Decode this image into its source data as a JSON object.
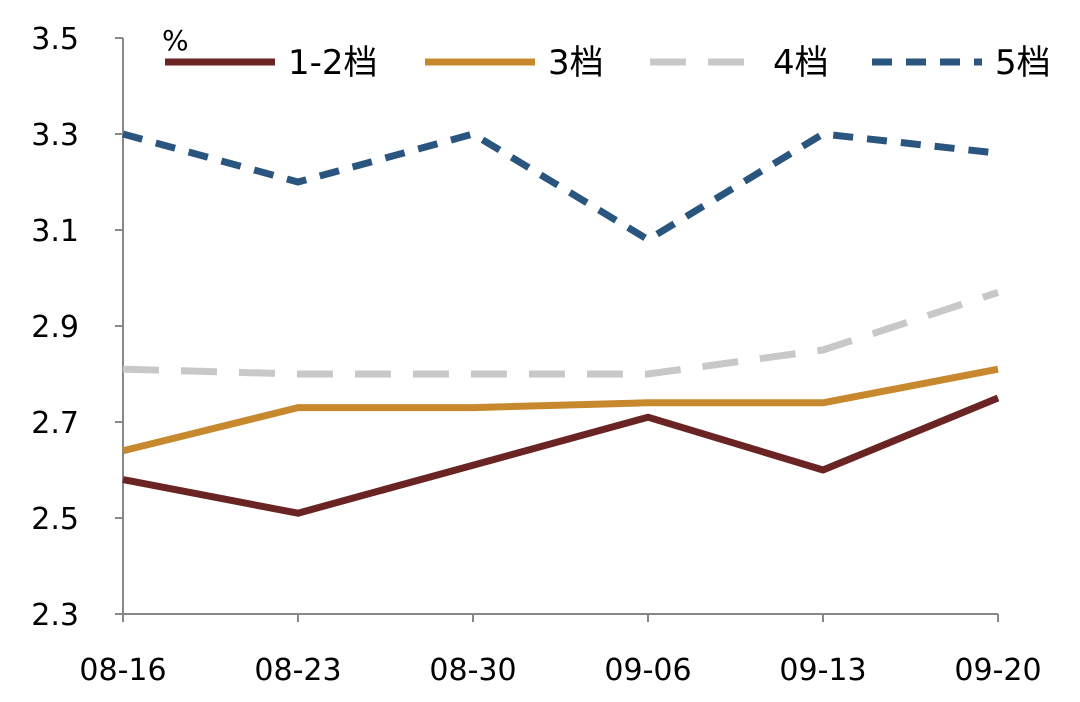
{
  "chart_data": {
    "type": "line",
    "title": "",
    "xlabel": "",
    "ylabel": "%",
    "categories": [
      "08-16",
      "08-23",
      "08-30",
      "09-06",
      "09-13",
      "09-20"
    ],
    "ylim": [
      2.3,
      3.5
    ],
    "yticks": [
      "2.3",
      "2.5",
      "2.7",
      "2.9",
      "3.1",
      "3.3",
      "3.5"
    ],
    "grid": false,
    "legend_position": "top",
    "series": [
      {
        "name": "1-2档",
        "values": [
          2.58,
          2.51,
          2.61,
          2.71,
          2.6,
          2.75
        ],
        "color": "#6b2424",
        "dash": "solid"
      },
      {
        "name": "3档",
        "values": [
          2.64,
          2.73,
          2.73,
          2.74,
          2.74,
          2.81
        ],
        "color": "#c8892e",
        "dash": "solid"
      },
      {
        "name": "4档",
        "values": [
          2.81,
          2.8,
          2.8,
          2.8,
          2.85,
          2.97
        ],
        "color": "#c8c8c8",
        "dash": "long-dash"
      },
      {
        "name": "5档",
        "values": [
          3.3,
          3.2,
          3.3,
          3.08,
          3.3,
          3.26
        ],
        "color": "#2a557e",
        "dash": "short-dash"
      }
    ]
  }
}
